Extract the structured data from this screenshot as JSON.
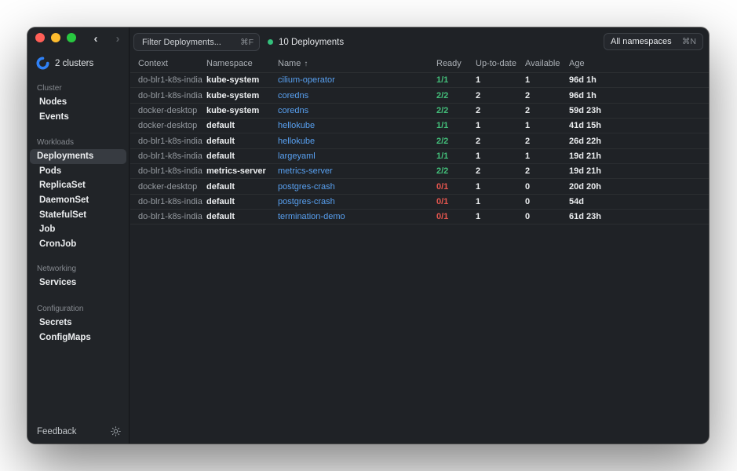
{
  "window": {
    "back_icon": "‹",
    "forward_icon": "›"
  },
  "toolbar": {
    "filter_placeholder": "Filter Deployments...",
    "filter_shortcut": "⌘F",
    "status_label": "10 Deployments",
    "namespace_value": "All namespaces",
    "namespace_shortcut": "⌘N"
  },
  "sidebar": {
    "clusters_label": "2 clusters",
    "sections": [
      {
        "label": "Cluster",
        "items": [
          {
            "label": "Nodes"
          },
          {
            "label": "Events"
          }
        ]
      },
      {
        "label": "Workloads",
        "items": [
          {
            "label": "Deployments",
            "selected": true
          },
          {
            "label": "Pods"
          },
          {
            "label": "ReplicaSet"
          },
          {
            "label": "DaemonSet"
          },
          {
            "label": "StatefulSet"
          },
          {
            "label": "Job"
          },
          {
            "label": "CronJob"
          }
        ]
      },
      {
        "label": "Networking",
        "items": [
          {
            "label": "Services"
          }
        ]
      },
      {
        "label": "Configuration",
        "items": [
          {
            "label": "Secrets"
          },
          {
            "label": "ConfigMaps"
          }
        ]
      }
    ],
    "feedback_label": "Feedback"
  },
  "table": {
    "columns": [
      "Context",
      "Namespace",
      "Name",
      "Ready",
      "Up-to-date",
      "Available",
      "Age"
    ],
    "sort_column": "Name",
    "sort_indicator": "↑",
    "rows": [
      {
        "context": "do-blr1-k8s-india",
        "namespace": "kube-system",
        "name": "cilium-operator",
        "ready": "1/1",
        "ready_ok": true,
        "up_to_date": "1",
        "available": "1",
        "age": "96d 1h"
      },
      {
        "context": "do-blr1-k8s-india",
        "namespace": "kube-system",
        "name": "coredns",
        "ready": "2/2",
        "ready_ok": true,
        "up_to_date": "2",
        "available": "2",
        "age": "96d 1h"
      },
      {
        "context": "docker-desktop",
        "namespace": "kube-system",
        "name": "coredns",
        "ready": "2/2",
        "ready_ok": true,
        "up_to_date": "2",
        "available": "2",
        "age": "59d 23h"
      },
      {
        "context": "docker-desktop",
        "namespace": "default",
        "name": "hellokube",
        "ready": "1/1",
        "ready_ok": true,
        "up_to_date": "1",
        "available": "1",
        "age": "41d 15h"
      },
      {
        "context": "do-blr1-k8s-india",
        "namespace": "default",
        "name": "hellokube",
        "ready": "2/2",
        "ready_ok": true,
        "up_to_date": "2",
        "available": "2",
        "age": "26d 22h"
      },
      {
        "context": "do-blr1-k8s-india",
        "namespace": "default",
        "name": "largeyaml",
        "ready": "1/1",
        "ready_ok": true,
        "up_to_date": "1",
        "available": "1",
        "age": "19d 21h"
      },
      {
        "context": "do-blr1-k8s-india",
        "namespace": "metrics-server",
        "name": "metrics-server",
        "ready": "2/2",
        "ready_ok": true,
        "up_to_date": "2",
        "available": "2",
        "age": "19d 21h"
      },
      {
        "context": "docker-desktop",
        "namespace": "default",
        "name": "postgres-crash",
        "ready": "0/1",
        "ready_ok": false,
        "up_to_date": "1",
        "available": "0",
        "age": "20d 20h"
      },
      {
        "context": "do-blr1-k8s-india",
        "namespace": "default",
        "name": "postgres-crash",
        "ready": "0/1",
        "ready_ok": false,
        "up_to_date": "1",
        "available": "0",
        "age": "54d"
      },
      {
        "context": "do-blr1-k8s-india",
        "namespace": "default",
        "name": "termination-demo",
        "ready": "0/1",
        "ready_ok": false,
        "up_to_date": "1",
        "available": "0",
        "age": "61d 23h"
      }
    ]
  },
  "colors": {
    "link_blue": "#58a0f0",
    "ready_green": "#43bf7a",
    "ready_red": "#e5564e",
    "status_dot_green": "#34c07c",
    "selected_item_bg": "#373b41"
  }
}
